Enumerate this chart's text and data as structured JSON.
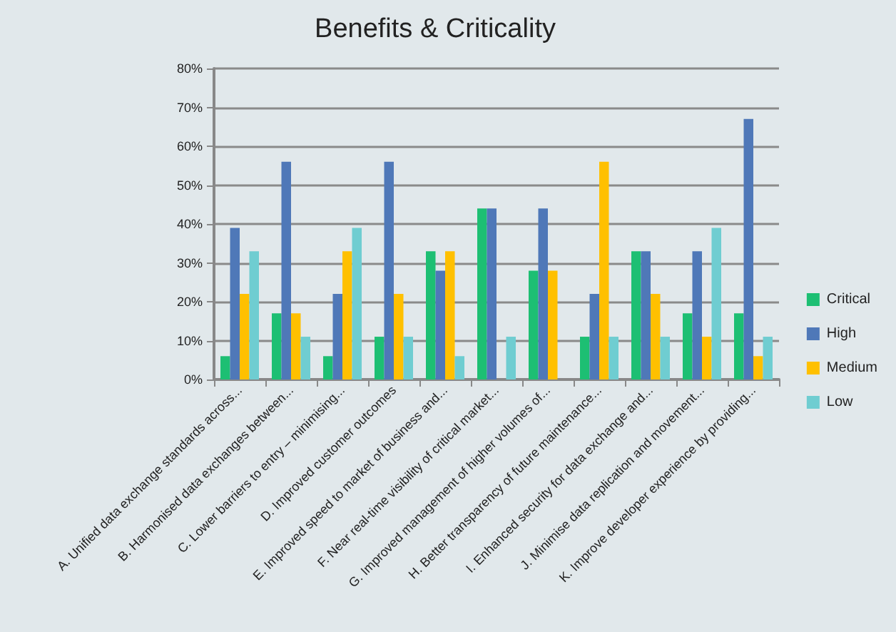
{
  "chart_data": {
    "type": "bar",
    "title": "Benefits & Criticality",
    "categories": [
      "A. Unified data exchange standards across...",
      "B. Harmonised data exchanges between...",
      "C. Lower barriers to entry – minimising...",
      "D. Improved customer outcomes",
      "E. Improved speed to market of business and...",
      "F. Near real-time visibility of critical market...",
      "G. Improved management of higher volumes of...",
      "H. Better transparency of future maintenance...",
      "I. Enhanced security for data exchange and...",
      "J. Minimise data replication and movement...",
      "K. Improve developer experience by providing..."
    ],
    "series": [
      {
        "name": "Critical",
        "color": "#1dbf73",
        "values": [
          6,
          17,
          6,
          11,
          33,
          44,
          28,
          11,
          33,
          17,
          17
        ]
      },
      {
        "name": "High",
        "color": "#4f78b8",
        "values": [
          39,
          56,
          22,
          56,
          28,
          44,
          44,
          22,
          33,
          33,
          67
        ]
      },
      {
        "name": "Medium",
        "color": "#ffc000",
        "values": [
          22,
          17,
          33,
          22,
          33,
          0,
          28,
          56,
          22,
          11,
          6
        ]
      },
      {
        "name": "Low",
        "color": "#6fcdd1",
        "values": [
          33,
          11,
          39,
          11,
          6,
          11,
          0,
          11,
          11,
          39,
          11
        ]
      }
    ],
    "ylim": [
      0,
      80
    ],
    "yticks": [
      {
        "value": 0,
        "label": "0%"
      },
      {
        "value": 10,
        "label": "10%"
      },
      {
        "value": 20,
        "label": "20%"
      },
      {
        "value": 30,
        "label": "30%"
      },
      {
        "value": 40,
        "label": "40%"
      },
      {
        "value": 50,
        "label": "50%"
      },
      {
        "value": 60,
        "label": "60%"
      },
      {
        "value": 70,
        "label": "70%"
      },
      {
        "value": 80,
        "label": "80%"
      }
    ],
    "grid": "y",
    "legend": "right"
  }
}
